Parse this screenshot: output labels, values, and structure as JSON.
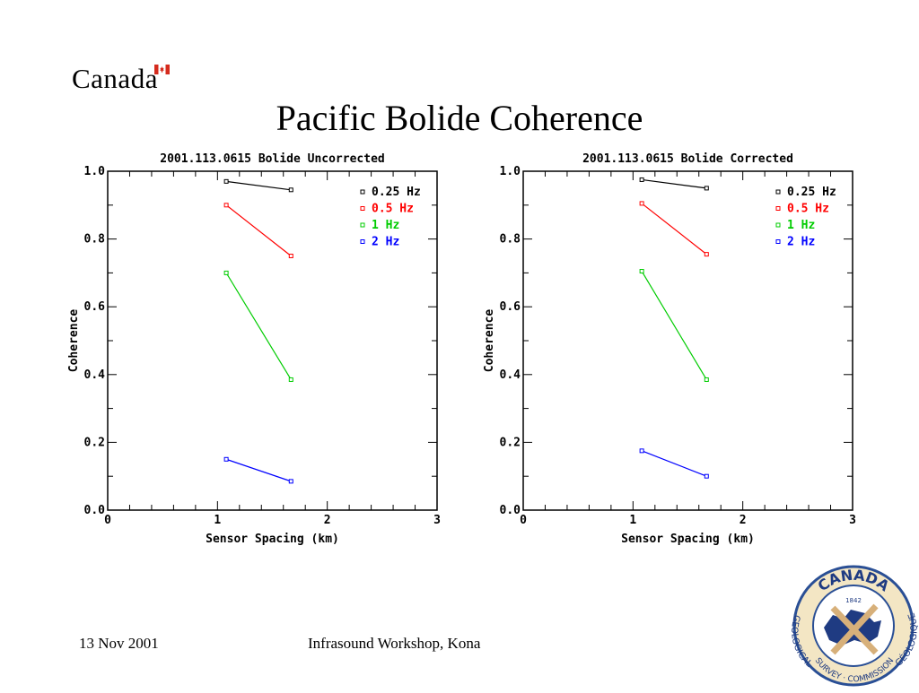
{
  "slide": {
    "wordmark": "Canada",
    "title": "Pacific Bolide Coherence",
    "footer_date": "13 Nov 2001",
    "footer_event": "Infrasound Workshop, Kona",
    "seal": {
      "top": "CANADA",
      "year": "1842",
      "left": "GEOLOGICAL",
      "bottom": "SURVEY · COMMISSION",
      "right": "GÉOLOGIQUE"
    }
  },
  "chart_data": [
    {
      "type": "line",
      "title": "2001.113.0615 Bolide Uncorrected",
      "xlabel": "Sensor Spacing (km)",
      "ylabel": "Coherence",
      "xlim": [
        0,
        3
      ],
      "ylim": [
        0,
        1
      ],
      "xticks": [
        0,
        1,
        2,
        3
      ],
      "yticks": [
        0.0,
        0.2,
        0.4,
        0.6,
        0.8,
        1.0
      ],
      "xtick_labels": [
        "0",
        "1",
        "2",
        "3"
      ],
      "ytick_labels": [
        "0.0",
        "0.2",
        "0.4",
        "0.6",
        "0.8",
        "1.0"
      ],
      "grid": false,
      "legend_position": "top-right",
      "x": [
        1.08,
        1.67
      ],
      "series": [
        {
          "name": "0.25 Hz",
          "color": "#000000",
          "values": [
            0.97,
            0.945
          ]
        },
        {
          "name": "0.5 Hz",
          "color": "#ff0000",
          "values": [
            0.9,
            0.75
          ]
        },
        {
          "name": "1 Hz",
          "color": "#00cc00",
          "values": [
            0.7,
            0.385
          ]
        },
        {
          "name": "2 Hz",
          "color": "#0000ff",
          "values": [
            0.15,
            0.085
          ]
        }
      ]
    },
    {
      "type": "line",
      "title": "2001.113.0615 Bolide Corrected",
      "xlabel": "Sensor Spacing (km)",
      "ylabel": "Coherence",
      "xlim": [
        0,
        3
      ],
      "ylim": [
        0,
        1
      ],
      "xticks": [
        0,
        1,
        2,
        3
      ],
      "yticks": [
        0.0,
        0.2,
        0.4,
        0.6,
        0.8,
        1.0
      ],
      "xtick_labels": [
        "0",
        "1",
        "2",
        "3"
      ],
      "ytick_labels": [
        "0.0",
        "0.2",
        "0.4",
        "0.6",
        "0.8",
        "1.0"
      ],
      "grid": false,
      "legend_position": "top-right",
      "x": [
        1.08,
        1.67
      ],
      "series": [
        {
          "name": "0.25 Hz",
          "color": "#000000",
          "values": [
            0.975,
            0.95
          ]
        },
        {
          "name": "0.5 Hz",
          "color": "#ff0000",
          "values": [
            0.905,
            0.755
          ]
        },
        {
          "name": "1 Hz",
          "color": "#00cc00",
          "values": [
            0.705,
            0.385
          ]
        },
        {
          "name": "2 Hz",
          "color": "#0000ff",
          "values": [
            0.175,
            0.1
          ]
        }
      ]
    }
  ]
}
